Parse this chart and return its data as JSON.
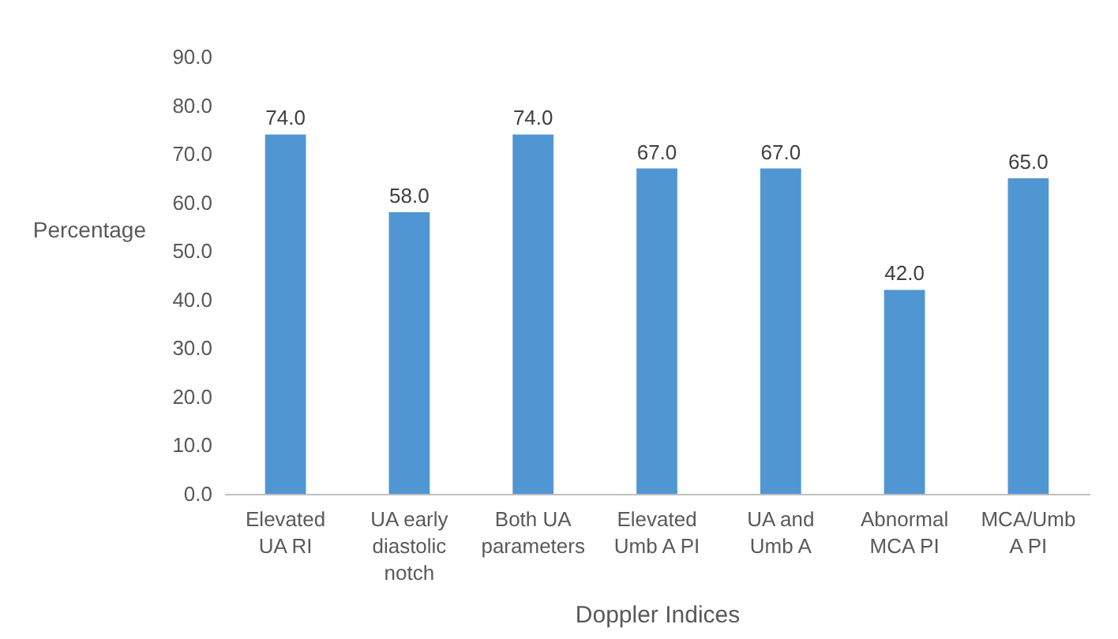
{
  "chart_data": {
    "type": "bar",
    "xlabel": "Doppler Indices",
    "ylabel": "Percentage",
    "categories": [
      "Elevated UA RI",
      "UA early diastolic notch",
      "Both UA parameters",
      "Elevated Umb A PI",
      "UA and Umb A",
      "Abnormal MCA PI",
      "MCA/Umb A PI"
    ],
    "values": [
      74,
      58,
      74,
      67,
      67,
      42,
      65
    ],
    "value_labels": [
      "74.0",
      "58.0",
      "74.0",
      "67.0",
      "67.0",
      "42.0",
      "65.0"
    ],
    "color": "#5096d3",
    "ylim": [
      0,
      90
    ],
    "yticks": [
      {
        "value": 0,
        "label": "0.0"
      },
      {
        "value": 10,
        "label": "10.0"
      },
      {
        "value": 20,
        "label": "20.0"
      },
      {
        "value": 30,
        "label": "30.0"
      },
      {
        "value": 40,
        "label": "40.0"
      },
      {
        "value": 50,
        "label": "50.0"
      },
      {
        "value": 60,
        "label": "60.0"
      },
      {
        "value": 70,
        "label": "70.0"
      },
      {
        "value": 80,
        "label": "80.0"
      },
      {
        "value": 90,
        "label": "90.0"
      }
    ],
    "grid": false
  }
}
